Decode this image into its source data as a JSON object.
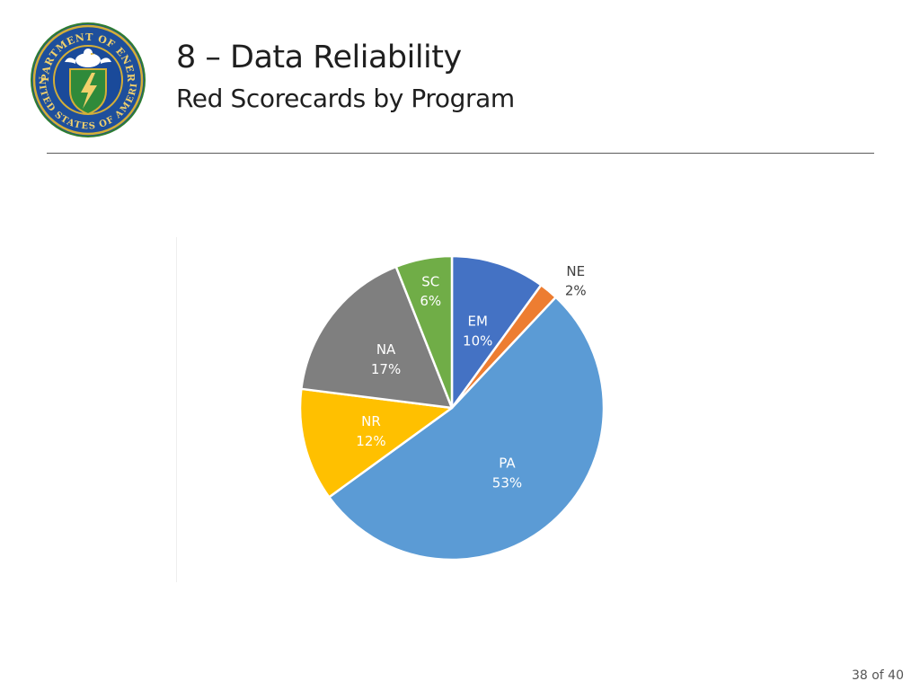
{
  "header": {
    "title": "8 – Data Reliability",
    "subtitle": "Red Scorecards by Program",
    "seal_text_top": "DEPARTMENT OF ENERGY",
    "seal_text_bottom": "UNITED STATES OF AMERICA"
  },
  "footer": {
    "page": "38 of 40"
  },
  "chart_data": {
    "type": "pie",
    "title": "",
    "start_angle_deg": 0,
    "direction": "clockwise",
    "slices": [
      {
        "label": "EM",
        "value": 10,
        "text": "10%",
        "color": "#4472C4",
        "label_color": "#ffffff"
      },
      {
        "label": "NE",
        "value": 2,
        "text": "2%",
        "color": "#ED7D31",
        "label_color": "#404040"
      },
      {
        "label": "PA",
        "value": 53,
        "text": "53%",
        "color": "#5B9BD5",
        "label_color": "#ffffff"
      },
      {
        "label": "NR",
        "value": 12,
        "text": "12%",
        "color": "#FFC000",
        "label_color": "#ffffff"
      },
      {
        "label": "NA",
        "value": 17,
        "text": "17%",
        "color": "#7F7F7F",
        "label_color": "#ffffff"
      },
      {
        "label": "SC",
        "value": 6,
        "text": "6%",
        "color": "#70AD47",
        "label_color": "#ffffff"
      }
    ]
  }
}
